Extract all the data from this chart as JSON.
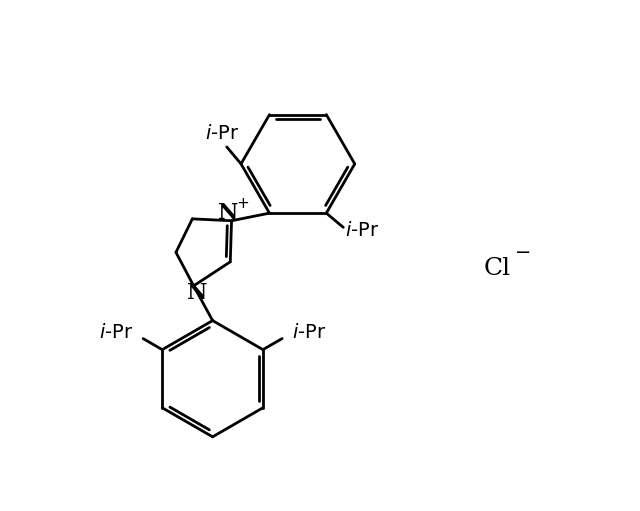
{
  "background_color": "#ffffff",
  "line_color": "#000000",
  "line_width": 2.0,
  "font_size": 14,
  "fig_width": 6.4,
  "fig_height": 5.11,
  "dpi": 100,
  "xlim": [
    0,
    10
  ],
  "ylim": [
    0,
    8
  ]
}
